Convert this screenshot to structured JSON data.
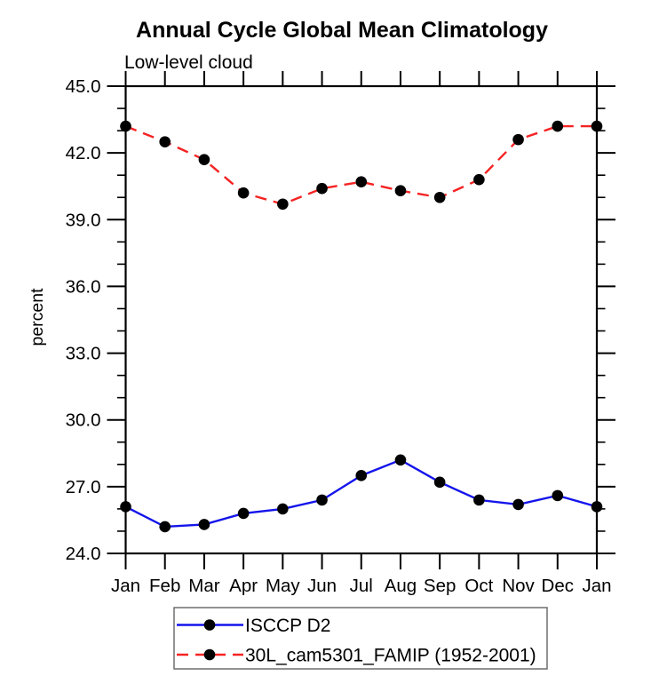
{
  "chart_data": {
    "type": "line",
    "title": "Annual Cycle Global Mean Climatology",
    "subtitle": "Low-level cloud",
    "ylabel": "percent",
    "xlabel": "",
    "categories": [
      "Jan",
      "Feb",
      "Mar",
      "Apr",
      "May",
      "Jun",
      "Jul",
      "Aug",
      "Sep",
      "Oct",
      "Nov",
      "Dec",
      "Jan"
    ],
    "ylim": [
      24.0,
      45.0
    ],
    "ytick_step": 3.0,
    "yminor_step": 1.0,
    "ytick_labels": [
      "24.0",
      "27.0",
      "30.0",
      "33.0",
      "36.0",
      "39.0",
      "42.0",
      "45.0"
    ],
    "grid": false,
    "legend_position": "bottom",
    "axis_color": "#000000",
    "marker_color": "#000000",
    "series": [
      {
        "name": "ISCCP D2",
        "line_style": "solid",
        "line_color": "#1414eb",
        "marker": "filled-circle",
        "values": [
          26.1,
          25.2,
          25.3,
          25.8,
          26.0,
          26.4,
          27.5,
          28.2,
          27.2,
          26.4,
          26.2,
          26.6,
          26.1
        ]
      },
      {
        "name": "30L_cam5301_FAMIP (1952-2001)",
        "line_style": "dashed",
        "line_color": "#f52323",
        "marker": "filled-circle",
        "values": [
          43.2,
          42.5,
          41.7,
          40.2,
          39.7,
          40.4,
          40.7,
          40.3,
          40.0,
          40.8,
          42.6,
          43.2,
          43.2
        ]
      }
    ]
  }
}
